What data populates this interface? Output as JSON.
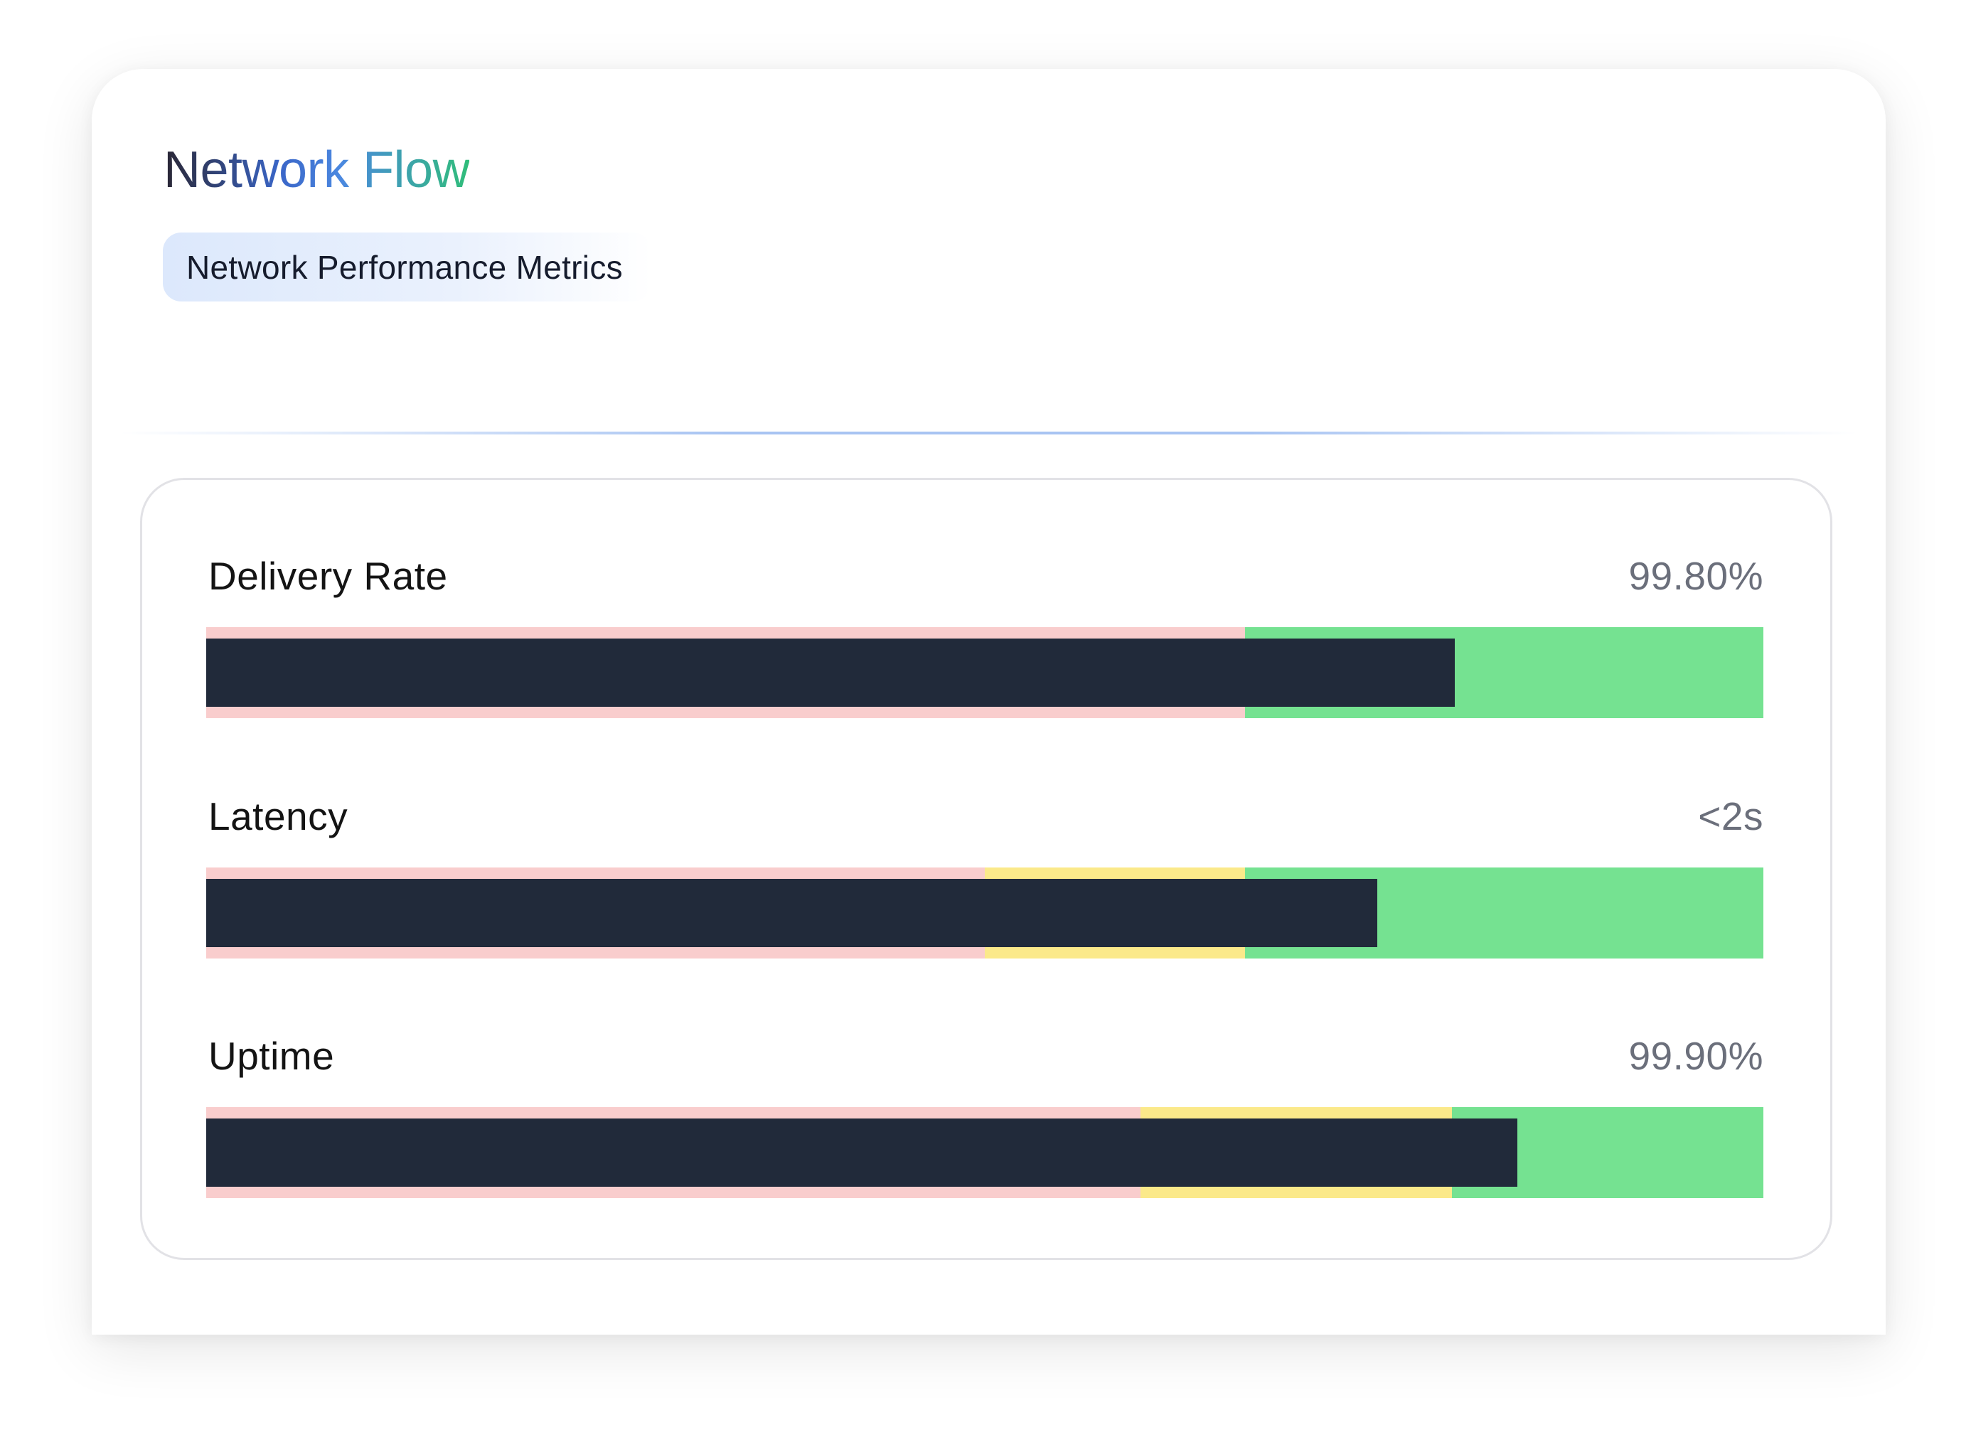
{
  "card": {
    "title": "Network Flow",
    "subtitle": "Network Performance Metrics"
  },
  "colors": {
    "poor": "#f9cdcd",
    "fair": "#fbe98a",
    "good": "#75e291",
    "measure": "#212a3a"
  },
  "chart_data": {
    "type": "bullet",
    "scale_max": 100,
    "metrics": [
      {
        "label": "Delivery Rate",
        "display_value": "99.80%",
        "bar": 80.2,
        "bands": [
          {
            "to": 66.7,
            "color": "poor"
          },
          {
            "to": 100,
            "color": "good"
          }
        ]
      },
      {
        "label": "Latency",
        "display_value": "<2s",
        "bar": 75.2,
        "bands": [
          {
            "to": 50.0,
            "color": "poor"
          },
          {
            "to": 66.7,
            "color": "fair"
          },
          {
            "to": 100,
            "color": "good"
          }
        ]
      },
      {
        "label": "Uptime",
        "display_value": "99.90%",
        "bar": 84.2,
        "bands": [
          {
            "to": 60.0,
            "color": "poor"
          },
          {
            "to": 80.0,
            "color": "fair"
          },
          {
            "to": 100,
            "color": "good"
          }
        ]
      }
    ]
  }
}
